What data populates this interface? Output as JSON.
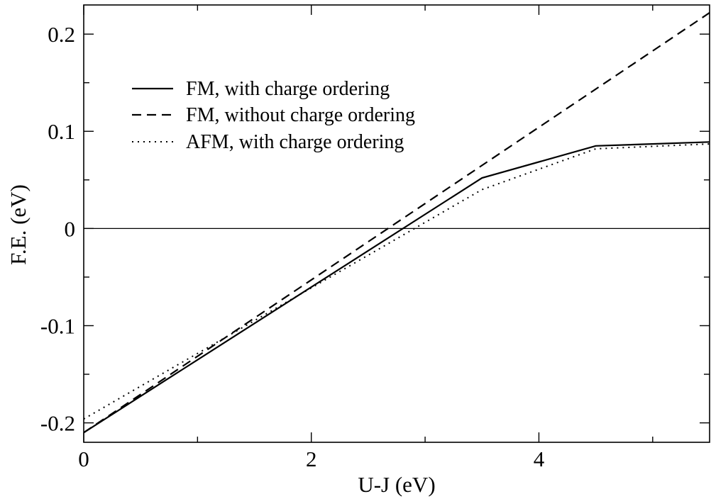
{
  "chart_data": {
    "type": "line",
    "title": "",
    "xlabel": "U-J (eV)",
    "ylabel": "F.E. (eV)",
    "xlim": [
      0,
      5.5
    ],
    "ylim": [
      -0.22,
      0.23
    ],
    "xticks": [
      0,
      2,
      4
    ],
    "xtick_labels": [
      "0",
      "2",
      "4"
    ],
    "yticks": [
      -0.2,
      -0.1,
      0,
      0.1,
      0.2
    ],
    "ytick_labels": [
      "-0.2",
      "-0.1",
      "0",
      "0.1",
      "0.2"
    ],
    "reference_line_y": 0,
    "grid": false,
    "legend_position": "upper-left",
    "series": [
      {
        "name": "FM, with charge ordering",
        "style": "solid",
        "x": [
          0,
          3.5,
          4.5,
          5.5
        ],
        "y": [
          -0.21,
          0.052,
          0.085,
          0.089
        ]
      },
      {
        "name": "FM, without charge ordering",
        "style": "dashed",
        "x": [
          0,
          5.5
        ],
        "y": [
          -0.21,
          0.222
        ]
      },
      {
        "name": "AFM, with charge ordering",
        "style": "dotted",
        "x": [
          0,
          3.5,
          4.5,
          5.5
        ],
        "y": [
          -0.196,
          0.04,
          0.082,
          0.087
        ]
      }
    ]
  }
}
